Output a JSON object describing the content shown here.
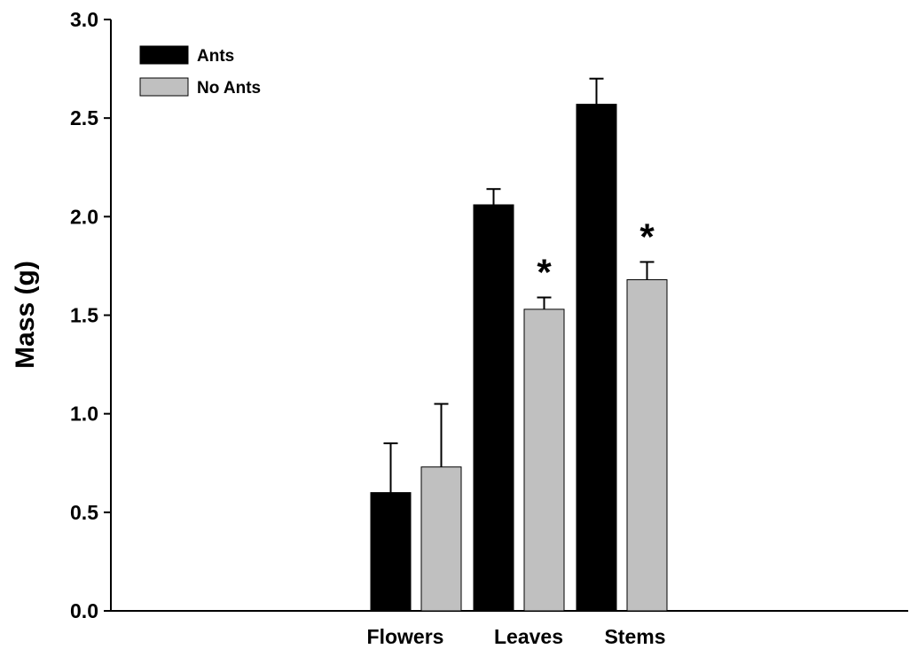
{
  "chart_data": {
    "type": "bar",
    "categories": [
      "Flowers",
      "Leaves",
      "Stems"
    ],
    "series": [
      {
        "name": "Ants",
        "color": "#000000",
        "values": [
          0.6,
          2.06,
          2.57
        ],
        "errors": [
          0.25,
          0.08,
          0.13
        ]
      },
      {
        "name": "No Ants",
        "color": "#c0c0c0",
        "values": [
          0.73,
          1.53,
          1.68
        ],
        "errors": [
          0.32,
          0.06,
          0.09
        ]
      }
    ],
    "significance": [
      {
        "category": "Leaves",
        "series": "No Ants",
        "label": "*"
      },
      {
        "category": "Stems",
        "series": "No Ants",
        "label": "*"
      }
    ],
    "title": "",
    "xlabel": "",
    "ylabel": "Mass (g)",
    "ylim": [
      0,
      3.0
    ],
    "yticks": [
      "0.0",
      "0.5",
      "1.0",
      "1.5",
      "2.0",
      "2.5",
      "3.0"
    ],
    "legend_position": "top-left",
    "grid": false
  }
}
